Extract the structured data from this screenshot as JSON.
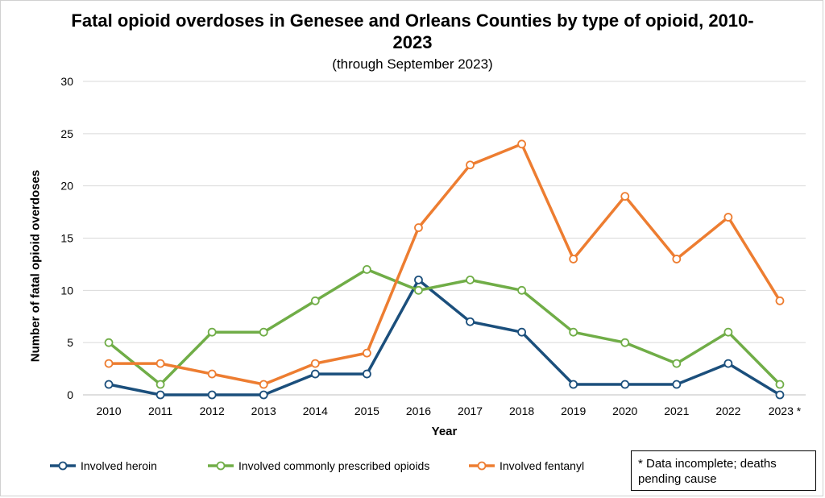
{
  "chart_data": {
    "type": "line",
    "title": "Fatal opioid overdoses in Genesee and Orleans Counties by type of opioid, 2010-2023",
    "subtitle": "(through September 2023)",
    "xlabel": "Year",
    "ylabel": "Number of fatal opioid overdoses",
    "categories": [
      "2010",
      "2011",
      "2012",
      "2013",
      "2014",
      "2015",
      "2016",
      "2017",
      "2018",
      "2019",
      "2020",
      "2021",
      "2022",
      "2023 *"
    ],
    "ylim": [
      0,
      30
    ],
    "yticks": [
      "0",
      "5",
      "10",
      "15",
      "20",
      "25",
      "30"
    ],
    "grid": true,
    "legend_position": "bottom",
    "series": [
      {
        "name": "Involved heroin",
        "color": "#1b4f7c",
        "values": [
          1,
          0,
          0,
          0,
          2,
          2,
          11,
          7,
          6,
          1,
          1,
          1,
          3,
          0
        ]
      },
      {
        "name": "Involved commonly prescribed opioids",
        "color": "#70ad47",
        "values": [
          5,
          1,
          6,
          6,
          9,
          12,
          10,
          11,
          10,
          6,
          5,
          3,
          6,
          1
        ]
      },
      {
        "name": "Involved fentanyl",
        "color": "#ed7d31",
        "values": [
          3,
          3,
          2,
          1,
          3,
          4,
          16,
          22,
          24,
          13,
          19,
          13,
          17,
          9
        ]
      }
    ],
    "note": "* Data incomplete; deaths pending cause"
  }
}
